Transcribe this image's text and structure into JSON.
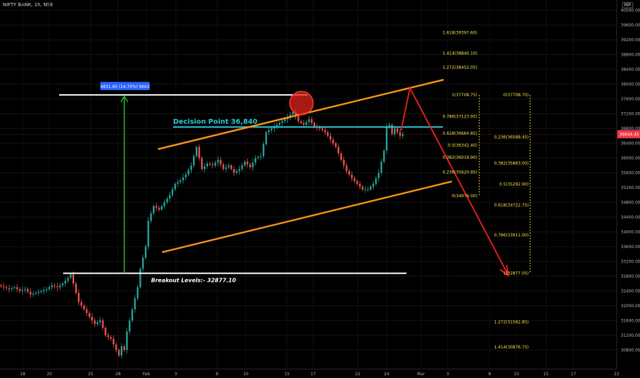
{
  "header": {
    "title": "NIFTY BANK, 1h, NSE",
    "currency": "INR"
  },
  "chart_data": {
    "type": "line",
    "title": "NIFTY BANK, 1h, NSE",
    "ylim": [
      30600,
      40000
    ],
    "y_ticks": [
      30800,
      31200,
      31600,
      32000,
      32400,
      32800,
      33200,
      33600,
      34000,
      34400,
      34800,
      35200,
      35600,
      36000,
      36400,
      36800,
      37200,
      37600,
      38000,
      38400,
      38800,
      39200,
      39600,
      40000
    ],
    "x_ticks": [
      "18",
      "20",
      "25",
      "28",
      "Feb",
      "3",
      "8",
      "10",
      "15",
      "17",
      "22",
      "24",
      "Mar",
      "3",
      "8",
      "10",
      "15",
      "17",
      "22"
    ],
    "current_price": "36644.45",
    "price_series": {
      "name": "",
      "points": [
        [
          0,
          32550
        ],
        [
          2,
          32500
        ],
        [
          4,
          32450
        ],
        [
          6,
          32500
        ],
        [
          8,
          32400
        ],
        [
          10,
          32450
        ],
        [
          12,
          32300
        ],
        [
          14,
          32350
        ],
        [
          16,
          32400
        ],
        [
          18,
          32450
        ],
        [
          20,
          32550
        ],
        [
          22,
          32500
        ],
        [
          24,
          32600
        ],
        [
          26,
          32750
        ],
        [
          27,
          32850
        ],
        [
          28,
          32600
        ],
        [
          30,
          32100
        ],
        [
          32,
          31900
        ],
        [
          34,
          31700
        ],
        [
          36,
          31500
        ],
        [
          38,
          31600
        ],
        [
          40,
          31200
        ],
        [
          42,
          31100
        ],
        [
          44,
          30800
        ],
        [
          45,
          30650
        ],
        [
          46,
          30900
        ],
        [
          47,
          30800
        ],
        [
          48,
          31300
        ],
        [
          50,
          31900
        ],
        [
          52,
          32500
        ],
        [
          53,
          33000
        ],
        [
          54,
          33300
        ],
        [
          55,
          33600
        ],
        [
          56,
          34300
        ],
        [
          58,
          34700
        ],
        [
          60,
          34600
        ],
        [
          62,
          34800
        ],
        [
          64,
          35000
        ],
        [
          66,
          35300
        ],
        [
          68,
          35400
        ],
        [
          70,
          35550
        ],
        [
          72,
          35800
        ],
        [
          74,
          36300
        ],
        [
          76,
          35700
        ],
        [
          78,
          35850
        ],
        [
          80,
          35800
        ],
        [
          82,
          35950
        ],
        [
          84,
          35700
        ],
        [
          86,
          35800
        ],
        [
          88,
          35600
        ],
        [
          90,
          35700
        ],
        [
          92,
          35900
        ],
        [
          94,
          35750
        ],
        [
          96,
          36000
        ],
        [
          98,
          36050
        ],
        [
          100,
          36700
        ],
        [
          102,
          36800
        ],
        [
          104,
          36900
        ],
        [
          106,
          37000
        ],
        [
          108,
          37100
        ],
        [
          110,
          37250
        ],
        [
          112,
          37000
        ],
        [
          114,
          36900
        ],
        [
          116,
          37050
        ],
        [
          118,
          36850
        ],
        [
          120,
          36800
        ],
        [
          122,
          36700
        ],
        [
          124,
          36500
        ],
        [
          126,
          36300
        ],
        [
          128,
          35950
        ],
        [
          130,
          35650
        ],
        [
          132,
          35450
        ],
        [
          134,
          35300
        ],
        [
          136,
          35150
        ],
        [
          138,
          35150
        ],
        [
          140,
          35300
        ],
        [
          142,
          35600
        ],
        [
          144,
          36200
        ],
        [
          145,
          36850
        ],
        [
          146,
          36900
        ],
        [
          147,
          36650
        ],
        [
          148,
          36800
        ],
        [
          150,
          36600
        ],
        [
          151,
          36644
        ]
      ]
    },
    "levels": {
      "breakout_price": 32877.1,
      "decision_price": 36840,
      "top_price": 37708.75
    },
    "annotations": {
      "measure_label": "4831.65 (14.70%) 9663",
      "decision_label": "Decision Point 36,840",
      "breakout_label": "Breakout Levels:- 32877.10",
      "fib_upper": [
        {
          "text": "1.618(39397.60)",
          "price": 39397.6
        },
        {
          "text": "1.414(38840.10)",
          "price": 38840.1
        },
        {
          "text": "1.272(38452.05)",
          "price": 38452.05
        },
        {
          "text": "1(37708.75)",
          "price": 37708.75
        },
        {
          "text": "0.786(37123.95)",
          "price": 37123.95
        },
        {
          "text": "0.618(36664.85)",
          "price": 36664.85
        },
        {
          "text": "0.5(36342.40)",
          "price": 36342.4
        },
        {
          "text": "0.382(36019.90)",
          "price": 36019.9
        },
        {
          "text": "0.236(35620.95)",
          "price": 35620.95
        },
        {
          "text": "0(34976.00)",
          "price": 34976.0
        }
      ],
      "fib_lower": [
        {
          "text": "0(37708.70)",
          "price": 37708.7
        },
        {
          "text": "0.236(36568.45)",
          "price": 36568.45
        },
        {
          "text": "0.382(35863.00)",
          "price": 35863.0
        },
        {
          "text": "0.5(35292.90)",
          "price": 35292.9
        },
        {
          "text": "0.618(34722.75)",
          "price": 34722.75
        },
        {
          "text": "0.786(33911.00)",
          "price": 33911.0
        },
        {
          "text": "1(32877.05)",
          "price": 32877.05
        },
        {
          "text": "1.272(31562.85)",
          "price": 31562.85
        },
        {
          "text": "1.414(30876.75)",
          "price": 30876.75
        }
      ]
    },
    "colors": {
      "up": "#26a69a",
      "down": "#ef5350",
      "channel": "#f7931a",
      "decision": "#2ec9d6",
      "arrow": "#e0211a",
      "fib": "#f5e64a",
      "measure": "#22c322",
      "price_tag": "#f23645",
      "label_box": "#2962ff"
    }
  }
}
